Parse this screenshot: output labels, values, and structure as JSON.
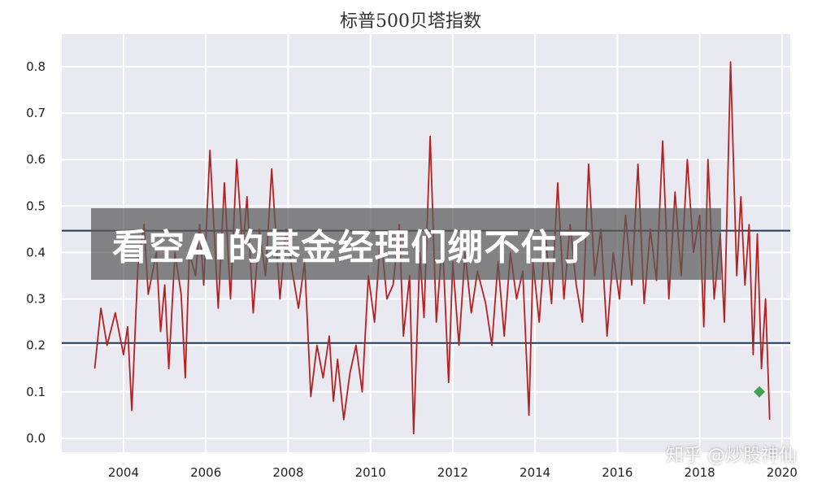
{
  "chart_data": {
    "type": "line",
    "title": "标普500贝塔指数",
    "xlabel": "",
    "ylabel": "",
    "xlim": [
      2002.5,
      2020.2
    ],
    "ylim": [
      -0.03,
      0.87
    ],
    "xticks": [
      2004,
      2006,
      2008,
      2010,
      2012,
      2014,
      2016,
      2018,
      2020
    ],
    "xtick_labels": [
      "2004",
      "2006",
      "2008",
      "2010",
      "2012",
      "2014",
      "2016",
      "2018",
      "2020"
    ],
    "yticks": [
      0.0,
      0.1,
      0.2,
      0.3,
      0.4,
      0.5,
      0.6,
      0.7,
      0.8
    ],
    "ytick_labels": [
      "0.0",
      "0.1",
      "0.2",
      "0.3",
      "0.4",
      "0.5",
      "0.6",
      "0.7",
      "0.8"
    ],
    "grid": true,
    "hlines": [
      0.447,
      0.205
    ],
    "series": [
      {
        "color": "#b22222",
        "x": [
          2003.3,
          2003.45,
          2003.6,
          2003.8,
          2004.0,
          2004.1,
          2004.2,
          2004.35,
          2004.5,
          2004.6,
          2004.8,
          2004.9,
          2005.0,
          2005.1,
          2005.25,
          2005.4,
          2005.5,
          2005.6,
          2005.75,
          2005.85,
          2005.95,
          2006.1,
          2006.3,
          2006.45,
          2006.6,
          2006.75,
          2006.9,
          2007.0,
          2007.15,
          2007.3,
          2007.45,
          2007.6,
          2007.8,
          2007.95,
          2008.1,
          2008.25,
          2008.4,
          2008.55,
          2008.7,
          2008.85,
          2009.0,
          2009.1,
          2009.2,
          2009.35,
          2009.5,
          2009.65,
          2009.8,
          2009.95,
          2010.1,
          2010.25,
          2010.4,
          2010.55,
          2010.7,
          2010.8,
          2010.95,
          2011.05,
          2011.2,
          2011.3,
          2011.45,
          2011.6,
          2011.75,
          2011.9,
          2012.0,
          2012.15,
          2012.3,
          2012.45,
          2012.6,
          2012.8,
          2012.95,
          2013.1,
          2013.25,
          2013.4,
          2013.55,
          2013.7,
          2013.85,
          2013.95,
          2014.1,
          2014.25,
          2014.4,
          2014.55,
          2014.7,
          2014.85,
          2015.0,
          2015.15,
          2015.3,
          2015.45,
          2015.6,
          2015.75,
          2015.9,
          2016.05,
          2016.2,
          2016.35,
          2016.5,
          2016.65,
          2016.8,
          2016.95,
          2017.1,
          2017.25,
          2017.4,
          2017.55,
          2017.7,
          2017.85,
          2018.0,
          2018.1,
          2018.2,
          2018.35,
          2018.5,
          2018.6,
          2018.75,
          2018.9,
          2019.0,
          2019.1,
          2019.2,
          2019.3,
          2019.4,
          2019.5,
          2019.6,
          2019.7
        ],
        "y": [
          0.15,
          0.28,
          0.2,
          0.27,
          0.18,
          0.24,
          0.06,
          0.37,
          0.46,
          0.31,
          0.4,
          0.23,
          0.33,
          0.15,
          0.4,
          0.31,
          0.13,
          0.4,
          0.35,
          0.46,
          0.33,
          0.62,
          0.28,
          0.55,
          0.3,
          0.6,
          0.4,
          0.52,
          0.27,
          0.45,
          0.35,
          0.58,
          0.3,
          0.45,
          0.36,
          0.28,
          0.38,
          0.09,
          0.2,
          0.13,
          0.22,
          0.08,
          0.17,
          0.04,
          0.14,
          0.2,
          0.1,
          0.35,
          0.25,
          0.44,
          0.3,
          0.33,
          0.46,
          0.22,
          0.35,
          0.01,
          0.4,
          0.26,
          0.65,
          0.25,
          0.43,
          0.12,
          0.38,
          0.2,
          0.4,
          0.27,
          0.36,
          0.29,
          0.2,
          0.38,
          0.22,
          0.4,
          0.3,
          0.36,
          0.05,
          0.38,
          0.25,
          0.44,
          0.29,
          0.55,
          0.3,
          0.46,
          0.33,
          0.25,
          0.59,
          0.35,
          0.45,
          0.22,
          0.4,
          0.3,
          0.48,
          0.33,
          0.59,
          0.29,
          0.45,
          0.34,
          0.64,
          0.3,
          0.53,
          0.35,
          0.6,
          0.4,
          0.48,
          0.24,
          0.6,
          0.3,
          0.44,
          0.25,
          0.81,
          0.35,
          0.52,
          0.33,
          0.46,
          0.18,
          0.44,
          0.15,
          0.3,
          0.04
        ]
      }
    ],
    "marker": {
      "x": 2019.45,
      "y": 0.1,
      "color": "#3fa34d"
    }
  },
  "banner": {
    "text": "看空AI的基金经理们绷不住了"
  },
  "watermark": {
    "text": "知乎 @炒股神仙"
  }
}
